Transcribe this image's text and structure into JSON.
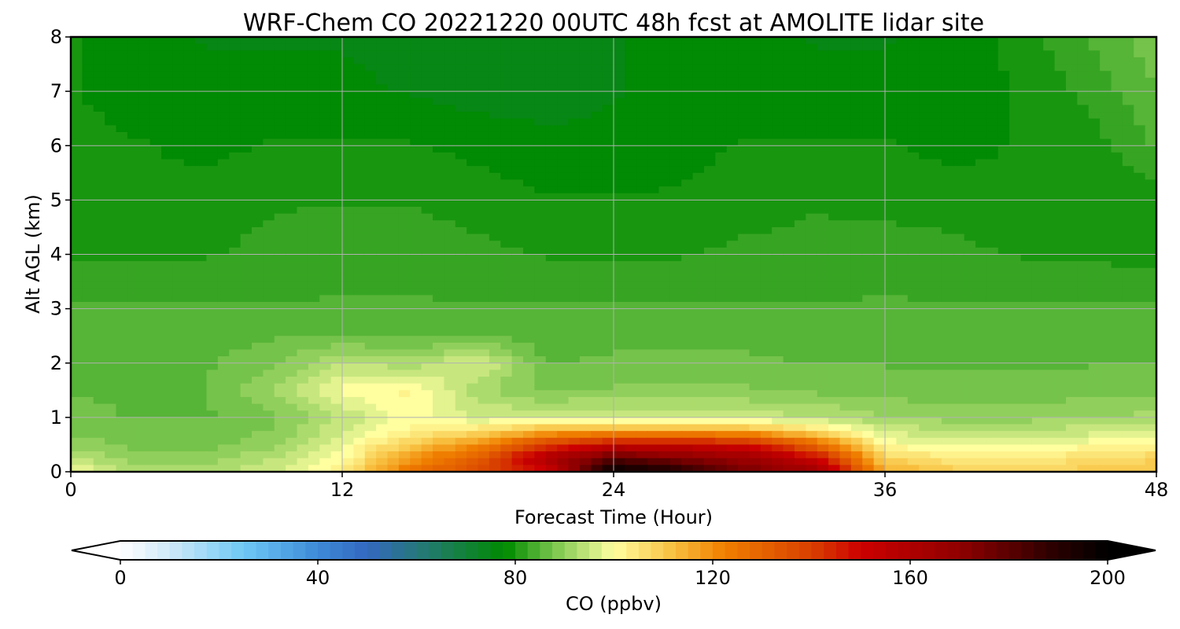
{
  "chart_data": {
    "type": "heatmap",
    "title": "WRF-Chem CO  20221220 00UTC 48h fcst at AMOLITE lidar site",
    "xlabel": "Forecast Time (Hour)",
    "ylabel": "Alt AGL (km)",
    "xlim": [
      0,
      48
    ],
    "ylim": [
      0,
      8
    ],
    "xticks": [
      "0",
      "12",
      "24",
      "36",
      "48"
    ],
    "yticks": [
      "0",
      "1",
      "2",
      "3",
      "4",
      "5",
      "6",
      "7",
      "8"
    ],
    "grid": true,
    "x": [
      0,
      3,
      6,
      9,
      12,
      15,
      18,
      21,
      24,
      27,
      30,
      33,
      36,
      39,
      42,
      45,
      48
    ],
    "y": [
      0,
      0.25,
      0.5,
      0.75,
      1,
      1.5,
      2,
      2.5,
      3,
      4,
      5,
      6,
      7,
      8
    ],
    "values": [
      [
        100,
        92,
        92,
        96,
        104,
        125,
        138,
        150,
        200,
        192,
        175,
        165,
        116,
        110,
        108,
        110,
        112
      ],
      [
        94,
        90,
        90,
        94,
        100,
        118,
        132,
        160,
        180,
        172,
        165,
        150,
        108,
        104,
        104,
        106,
        108
      ],
      [
        90,
        88,
        88,
        90,
        98,
        110,
        120,
        140,
        152,
        152,
        148,
        128,
        100,
        98,
        98,
        100,
        102
      ],
      [
        88,
        87,
        87,
        89,
        96,
        102,
        106,
        114,
        116,
        116,
        114,
        106,
        96,
        94,
        94,
        95,
        97
      ],
      [
        87,
        86,
        86,
        88,
        94,
        100,
        96,
        96,
        96,
        96,
        95,
        94,
        91,
        90,
        90,
        91,
        92
      ],
      [
        86,
        86,
        86,
        92,
        100,
        102,
        92,
        88,
        89,
        89,
        89,
        88,
        88,
        87,
        87,
        88,
        88
      ],
      [
        86,
        85,
        86,
        88,
        94,
        92,
        97,
        86,
        87,
        87,
        87,
        86,
        86,
        86,
        86,
        86,
        86
      ],
      [
        85,
        85,
        85,
        86,
        86,
        86,
        86,
        85,
        85,
        85,
        85,
        85,
        85,
        85,
        85,
        85,
        85
      ],
      [
        84,
        84,
        84,
        84,
        84,
        84,
        84,
        84,
        84,
        84,
        84,
        84,
        84,
        84,
        84,
        84,
        84
      ],
      [
        81,
        81,
        81,
        82,
        83,
        83,
        82,
        81,
        81,
        81,
        82,
        82,
        83,
        82,
        81,
        81,
        80
      ],
      [
        80,
        79,
        80,
        81,
        81,
        81,
        80,
        79,
        79,
        79,
        80,
        81,
        80,
        80,
        79,
        79,
        80
      ],
      [
        80,
        79,
        78,
        79,
        79,
        79,
        78,
        77,
        77,
        78,
        79,
        79,
        79,
        78,
        79,
        80,
        84
      ],
      [
        79,
        77,
        77,
        77,
        77,
        76,
        75,
        75,
        76,
        77,
        77,
        77,
        77,
        77,
        79,
        82,
        86
      ],
      [
        79,
        77,
        76,
        76,
        76,
        75,
        74,
        75,
        76,
        77,
        77,
        76,
        76,
        77,
        80,
        84,
        88
      ]
    ],
    "colorbar": {
      "label": "CO  (ppbv)",
      "ticks": [
        "0",
        "40",
        "80",
        "120",
        "160",
        "200"
      ],
      "range": [
        0,
        200
      ],
      "extend": "both",
      "stops": [
        {
          "v": 0,
          "c": "#ffffff"
        },
        {
          "v": 10,
          "c": "#cfe9f8"
        },
        {
          "v": 25,
          "c": "#6ec8f5"
        },
        {
          "v": 40,
          "c": "#3d8ad8"
        },
        {
          "v": 50,
          "c": "#3468c0"
        },
        {
          "v": 62,
          "c": "#237a70"
        },
        {
          "v": 78,
          "c": "#008a00"
        },
        {
          "v": 88,
          "c": "#7bc64e"
        },
        {
          "v": 97,
          "c": "#ddf08c"
        },
        {
          "v": 100,
          "c": "#ffffa0"
        },
        {
          "v": 112,
          "c": "#f8c040"
        },
        {
          "v": 122,
          "c": "#f08000"
        },
        {
          "v": 140,
          "c": "#d84000"
        },
        {
          "v": 150,
          "c": "#cc0000"
        },
        {
          "v": 170,
          "c": "#900000"
        },
        {
          "v": 188,
          "c": "#300000"
        },
        {
          "v": 200,
          "c": "#000000"
        }
      ]
    }
  }
}
